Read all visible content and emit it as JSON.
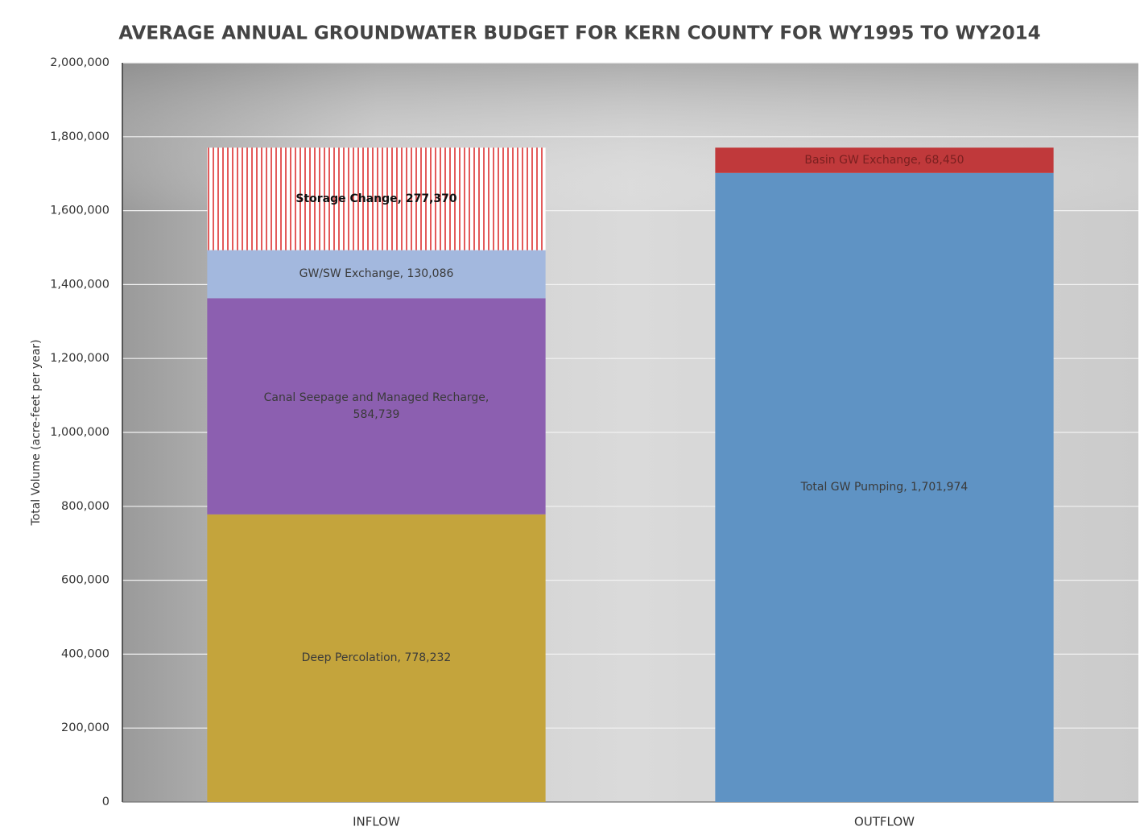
{
  "chart_data": {
    "type": "stacked_bar",
    "title": "AVERAGE ANNUAL GROUNDWATER BUDGET FOR KERN COUNTY FOR WY1995 TO WY2014",
    "ylabel": "Total Volume (acre-feet per year)",
    "categories": [
      "INFLOW",
      "OUTFLOW"
    ],
    "series": [
      {
        "color": "#c4a43c",
        "values": [
          778232,
          null
        ],
        "value_labels": [
          "Deep Percolation, 778,232",
          null
        ]
      },
      {
        "color": "#8c5fb0",
        "values": [
          584739,
          null
        ],
        "value_labels": [
          "Canal Seepage and Managed Recharge, 584,739",
          null
        ]
      },
      {
        "color": "#a3b8de",
        "values": [
          130086,
          null
        ],
        "value_labels": [
          "GW/SW Exchange, 130,086",
          null
        ]
      },
      {
        "color": "#e35a5a",
        "pattern": "vertical-stripes",
        "values": [
          277370,
          null
        ],
        "value_labels": [
          "Storage Change, 277,370",
          null
        ]
      },
      {
        "color": "#5f93c4",
        "values": [
          null,
          1701974
        ],
        "value_labels": [
          null,
          "Total GW Pumping, 1,701,974"
        ]
      },
      {
        "color": "#c0393b",
        "values": [
          null,
          68450
        ],
        "value_labels": [
          null,
          "Basin GW Exchange, 68,450"
        ]
      }
    ],
    "ylim": [
      0,
      2000000
    ],
    "yticks": [
      0,
      {
        "value": 200000,
        "label": "200,000"
      },
      {
        "value": 400000,
        "label": "400,000"
      },
      {
        "value": 600000,
        "label": "600,000"
      },
      {
        "value": 800000,
        "label": "800,000"
      },
      {
        "value": 1000000,
        "label": "1,000,000"
      },
      {
        "value": 1200000,
        "label": "1,200,000"
      },
      {
        "value": 1400000,
        "label": "1,400,000"
      },
      {
        "value": 1600000,
        "label": "1,600,000"
      },
      {
        "value": 1800000,
        "label": "1,800,000"
      },
      {
        "value": 2000000,
        "label": "2,000,000"
      }
    ],
    "grid": true
  }
}
